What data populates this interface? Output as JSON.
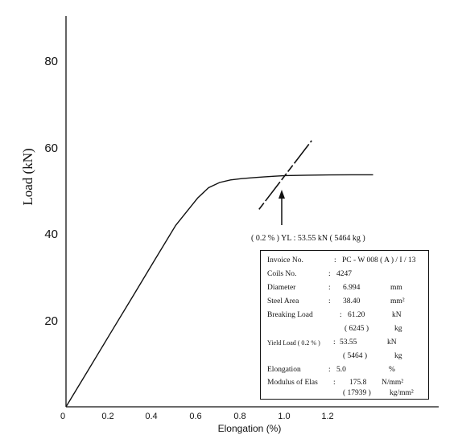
{
  "chart_data": {
    "type": "line",
    "xlabel": "Elongation (%)",
    "ylabel": "Load (kN)",
    "xlim": [
      0,
      1.6
    ],
    "ylim": [
      0,
      90
    ],
    "x_ticks": [
      "0",
      "0.2",
      "0.4",
      "0.6",
      "0.8",
      "1.0",
      "1.2"
    ],
    "y_ticks": [
      "20",
      "40",
      "60",
      "80"
    ],
    "grid": false,
    "legend": "none",
    "series": [
      {
        "style": "solid",
        "x": [
          0,
          0.1,
          0.2,
          0.3,
          0.4,
          0.5,
          0.6,
          0.65,
          0.7,
          0.75,
          0.8,
          0.85,
          0.9,
          0.95,
          1.0,
          1.05,
          1.1,
          1.2,
          1.3,
          1.4
        ],
        "y": [
          0,
          8.4,
          16.8,
          25.2,
          33.6,
          42.0,
          48.3,
          50.7,
          51.9,
          52.5,
          52.8,
          53.0,
          53.2,
          53.35,
          53.5,
          53.55,
          53.6,
          53.65,
          53.7,
          53.7
        ]
      },
      {
        "style": "offset-line",
        "x": [
          0.88,
          1.12
        ],
        "y": [
          45.7,
          61.6
        ]
      }
    ],
    "annotations": [
      {
        "text": "( 0.2 % )  YL : 53.55  kN  ( 5464  kg )",
        "x": 1.0,
        "y": 47
      }
    ]
  },
  "info_box": {
    "rows": [
      {
        "label": "Invoice No.",
        "sep": ":",
        "value": "PC - W 008 ( A ) / I / 13",
        "unit": ""
      },
      {
        "label": "Coils   No.",
        "sep": ":",
        "value": "4247",
        "unit": ""
      },
      {
        "label": "Diameter",
        "sep": ":",
        "value": "6.994",
        "unit": "mm"
      },
      {
        "label": "Steel  Area",
        "sep": ":",
        "value": "38.40",
        "unit": "mm²"
      },
      {
        "label": "Breaking Load",
        "sep": ":",
        "value": "61.20",
        "unit": "kN"
      },
      {
        "label": "",
        "sep": "",
        "value": "( 6245 )",
        "unit": "kg"
      },
      {
        "label": "Yield Load ( 0.2 % )",
        "sep": ":",
        "value": "53.55",
        "unit": "kN"
      },
      {
        "label": "",
        "sep": "",
        "value": "( 5464 )",
        "unit": "kg"
      },
      {
        "label": "Elongation",
        "sep": ":",
        "value": "5.0",
        "unit": "%"
      },
      {
        "label": "Modulus of Elas",
        "sep": ":",
        "value": "175.8",
        "unit": "N/mm²"
      },
      {
        "label": "",
        "sep": "",
        "value": "( 17939 )",
        "unit": "kg/mm²"
      }
    ]
  }
}
